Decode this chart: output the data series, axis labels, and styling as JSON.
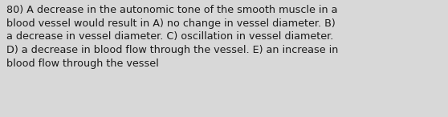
{
  "text": "80) A decrease in the autonomic tone of the smooth muscle in a\nblood vessel would result in A) no change in vessel diameter. B)\na decrease in vessel diameter. C) oscillation in vessel diameter.\nD) a decrease in blood flow through the vessel. E) an increase in\nblood flow through the vessel",
  "background_color": "#d8d8d8",
  "text_color": "#1a1a1a",
  "font_size": 9.2,
  "fig_width": 5.58,
  "fig_height": 1.46,
  "dpi": 100
}
